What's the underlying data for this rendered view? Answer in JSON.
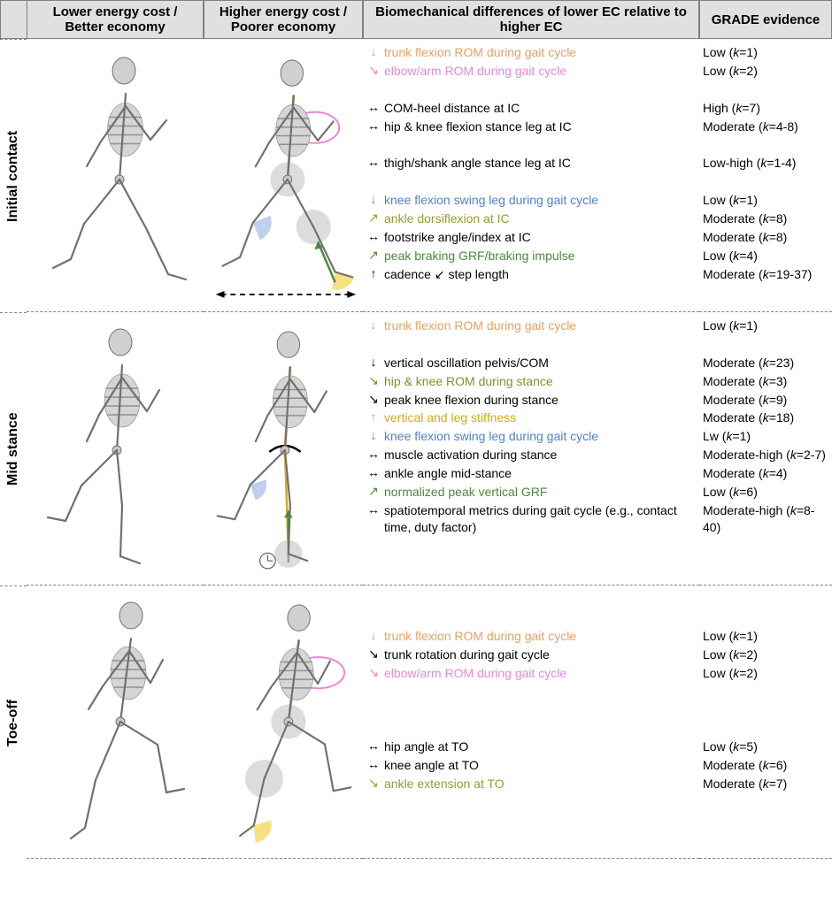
{
  "colors": {
    "trunk_orange": "#e8a060",
    "elbow_pink": "#e888d8",
    "neutral_black": "#000000",
    "knee_blue": "#5080d0",
    "ankle_olive": "#9a9a30",
    "grf_green": "#4a8a3a",
    "stiffness_gold": "#d4a820",
    "hip_olive": "#8a8a30",
    "header_bg": "#e0e0e0",
    "border": "#808080",
    "annot_blue": "#a8c0e8",
    "annot_yellow": "#f5d860",
    "annot_gray": "#c0c0c0",
    "annot_green": "#4a8a3a"
  },
  "headers": {
    "col1": "Lower energy cost / Better economy",
    "col2": "Higher energy cost / Poorer economy",
    "col3": "Biomechanical differences of lower EC relative to higher EC",
    "col4": "GRADE evidence"
  },
  "rows": [
    {
      "label": "Initial contact",
      "skeleton_pose": "ic",
      "entries": [
        {
          "arrow": "↓",
          "text": "trunk flexion ROM during gait cycle",
          "color_key": "trunk_orange",
          "evidence": "Low",
          "k": "1"
        },
        {
          "arrow": "↘",
          "text": "elbow/arm ROM during gait cycle",
          "color_key": "elbow_pink",
          "evidence": "Low",
          "k": "2"
        },
        {
          "arrow": "",
          "text": "",
          "color_key": "neutral_black",
          "evidence": "",
          "k": ""
        },
        {
          "arrow": "↔",
          "text": "COM-heel distance at IC",
          "color_key": "neutral_black",
          "evidence": "High",
          "k": "7"
        },
        {
          "arrow": "↔",
          "text": "hip & knee flexion stance leg at IC",
          "color_key": "neutral_black",
          "evidence": "Moderate",
          "k": "4-8"
        },
        {
          "arrow": "",
          "text": "",
          "color_key": "neutral_black",
          "evidence": "",
          "k": ""
        },
        {
          "arrow": "↔",
          "text": "thigh/shank angle stance leg at IC",
          "color_key": "neutral_black",
          "evidence": "Low-high",
          "k": "1-4"
        },
        {
          "arrow": "",
          "text": "",
          "color_key": "neutral_black",
          "evidence": "",
          "k": ""
        },
        {
          "arrow": "↓",
          "text": "knee flexion swing leg during gait cycle",
          "color_key": "knee_blue",
          "evidence": "Low",
          "k": "1"
        },
        {
          "arrow": "↗",
          "text": "ankle dorsiflexion at IC",
          "color_key": "ankle_olive",
          "evidence": "Moderate",
          "k": "8"
        },
        {
          "arrow": "↔",
          "text": "footstrike angle/index at IC",
          "color_key": "neutral_black",
          "evidence": "Moderate",
          "k": "8"
        },
        {
          "arrow": "↗",
          "text": "peak braking GRF/braking impulse",
          "color_key": "grf_green",
          "evidence": "Low",
          "k": "4"
        },
        {
          "arrow": "↑",
          "text": "cadence ↙ step length",
          "color_key": "neutral_black",
          "evidence": "Moderate",
          "k": "19-37"
        }
      ]
    },
    {
      "label": "Mid stance",
      "skeleton_pose": "ms",
      "entries": [
        {
          "arrow": "↓",
          "text": "trunk flexion ROM during gait cycle",
          "color_key": "trunk_orange",
          "evidence": "Low",
          "k": "1"
        },
        {
          "arrow": "",
          "text": "",
          "color_key": "neutral_black",
          "evidence": "",
          "k": ""
        },
        {
          "arrow": "↓",
          "text": "vertical oscillation pelvis/COM",
          "color_key": "neutral_black",
          "evidence": "Moderate",
          "k": "23"
        },
        {
          "arrow": "↘",
          "text": "hip & knee ROM during stance",
          "color_key": "hip_olive",
          "evidence": "Moderate",
          "k": "3"
        },
        {
          "arrow": "↘",
          "text": "peak knee flexion during stance",
          "color_key": "neutral_black",
          "evidence": "Moderate",
          "k": "9"
        },
        {
          "arrow": "↑",
          "text": "vertical and leg stiffness",
          "color_key": "stiffness_gold",
          "evidence": "Moderate",
          "k": "18"
        },
        {
          "arrow": "↓",
          "text": "knee flexion swing leg during gait cycle",
          "color_key": "knee_blue",
          "evidence": "Lw",
          "k": "1"
        },
        {
          "arrow": "↔",
          "text": "muscle activation during stance",
          "color_key": "neutral_black",
          "evidence": "Moderate-high",
          "k": "2-7"
        },
        {
          "arrow": "↔",
          "text": "ankle angle mid-stance",
          "color_key": "neutral_black",
          "evidence": "Moderate",
          "k": "4"
        },
        {
          "arrow": "↗",
          "text": "normalized peak vertical GRF",
          "color_key": "grf_green",
          "evidence": "Low",
          "k": "6"
        },
        {
          "arrow": "↔",
          "text": "spatiotemporal metrics during gait cycle (e.g., contact time, duty factor)",
          "color_key": "neutral_black",
          "evidence": "Moderate-high",
          "k": "8-40"
        }
      ]
    },
    {
      "label": "Toe-off",
      "skeleton_pose": "to",
      "entries": [
        {
          "arrow": "",
          "text": "",
          "color_key": "neutral_black",
          "evidence": "",
          "k": ""
        },
        {
          "arrow": "",
          "text": "",
          "color_key": "neutral_black",
          "evidence": "",
          "k": ""
        },
        {
          "arrow": "↓",
          "text": "trunk flexion ROM during gait cycle",
          "color_key": "trunk_orange",
          "evidence": "Low",
          "k": "1"
        },
        {
          "arrow": "↘",
          "text": "trunk rotation during gait cycle",
          "color_key": "neutral_black",
          "evidence": "Low",
          "k": "2"
        },
        {
          "arrow": "↘",
          "text": "elbow/arm ROM during gait cycle",
          "color_key": "elbow_pink",
          "evidence": "Low",
          "k": "2"
        },
        {
          "arrow": "",
          "text": "",
          "color_key": "neutral_black",
          "evidence": "",
          "k": ""
        },
        {
          "arrow": "",
          "text": "",
          "color_key": "neutral_black",
          "evidence": "",
          "k": ""
        },
        {
          "arrow": "",
          "text": "",
          "color_key": "neutral_black",
          "evidence": "",
          "k": ""
        },
        {
          "arrow": "↔",
          "text": "hip angle at TO",
          "color_key": "neutral_black",
          "evidence": "Low",
          "k": "5"
        },
        {
          "arrow": "↔",
          "text": "knee angle at TO",
          "color_key": "neutral_black",
          "evidence": "Moderate",
          "k": "6"
        },
        {
          "arrow": "↘",
          "text": " ankle extension at TO",
          "color_key": "ankle_olive",
          "evidence": "Moderate",
          "k": "7"
        }
      ]
    }
  ]
}
